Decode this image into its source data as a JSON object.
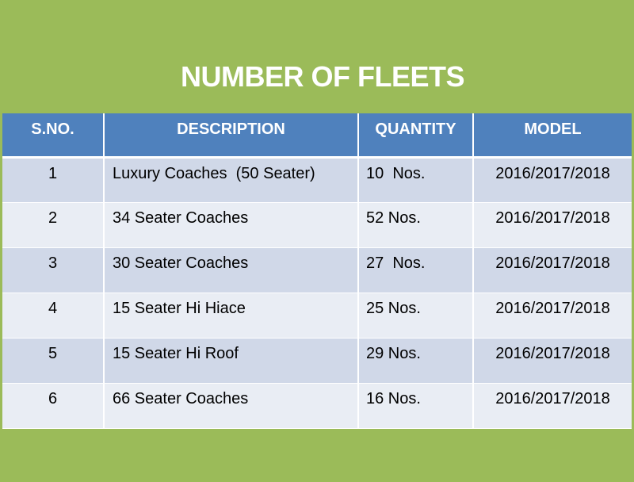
{
  "title": "NUMBER OF FLEETS",
  "table": {
    "headers": [
      "S.NO.",
      "DESCRIPTION",
      "QUANTITY",
      "MODEL"
    ],
    "rows": [
      {
        "sno": "1",
        "description": "Luxury Coaches  (50 Seater)",
        "quantity": "10  Nos.",
        "model": "2016/2017/2018"
      },
      {
        "sno": "2",
        "description": "34 Seater Coaches",
        "quantity": "52 Nos.",
        "model": "2016/2017/2018"
      },
      {
        "sno": "3",
        "description": "30 Seater Coaches",
        "quantity": "27  Nos.",
        "model": "2016/2017/2018"
      },
      {
        "sno": "4",
        "description": "15 Seater Hi Hiace",
        "quantity": "25 Nos.",
        "model": "2016/2017/2018"
      },
      {
        "sno": "5",
        "description": "15 Seater Hi Roof",
        "quantity": "29 Nos.",
        "model": "2016/2017/2018"
      },
      {
        "sno": "6",
        "description": "66 Seater Coaches",
        "quantity": "16 Nos.",
        "model": "2016/2017/2018"
      }
    ]
  },
  "colors": {
    "background": "#9bbb59",
    "header": "#4f81bd",
    "row_odd": "#d0d8e8",
    "row_even": "#e9edf4"
  }
}
